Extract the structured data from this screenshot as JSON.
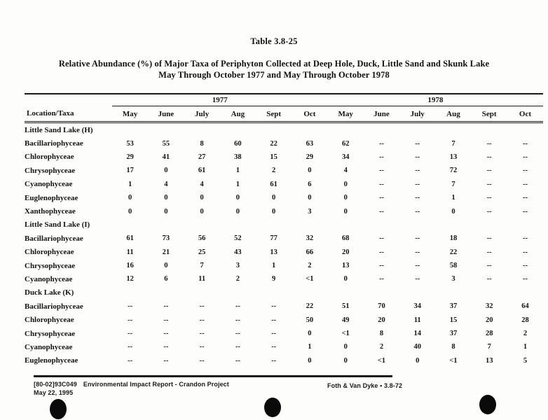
{
  "colors": {
    "ink": "#1a1a1a",
    "page": "#fdfdfb"
  },
  "header": {
    "table_label": "Table 3.8-25",
    "title_line1": "Relative Abundance (%) of Major Taxa of Periphyton Collected at Deep Hole, Duck, Little Sand and Skunk Lake",
    "title_line2": "May Through October 1977 and May Through October 1978"
  },
  "table": {
    "corner_header": "Location/Taxa",
    "year_groups": [
      {
        "label": "1977"
      },
      {
        "label": "1978"
      }
    ],
    "months": [
      "May",
      "June",
      "July",
      "Aug",
      "Sept",
      "Oct",
      "May",
      "June",
      "July",
      "Aug",
      "Sept",
      "Oct"
    ],
    "sections": [
      {
        "location": "Little Sand Lake (H)",
        "rows": [
          {
            "taxon": "Bacillariophyceae",
            "values": [
              "53",
              "55",
              "8",
              "60",
              "22",
              "63",
              "62",
              "--",
              "--",
              "7",
              "--",
              "--"
            ]
          },
          {
            "taxon": "Chlorophyceae",
            "values": [
              "29",
              "41",
              "27",
              "38",
              "15",
              "29",
              "34",
              "--",
              "--",
              "13",
              "--",
              "--"
            ]
          },
          {
            "taxon": "Chrysophyceae",
            "values": [
              "17",
              "0",
              "61",
              "1",
              "2",
              "0",
              "4",
              "--",
              "--",
              "72",
              "--",
              "--"
            ]
          },
          {
            "taxon": "Cyanophyceae",
            "values": [
              "1",
              "4",
              "4",
              "1",
              "61",
              "6",
              "0",
              "--",
              "--",
              "7",
              "--",
              "--"
            ]
          },
          {
            "taxon": "Euglenophyceae",
            "values": [
              "0",
              "0",
              "0",
              "0",
              "0",
              "0",
              "0",
              "--",
              "--",
              "1",
              "--",
              "--"
            ]
          },
          {
            "taxon": "Xanthophyceae",
            "values": [
              "0",
              "0",
              "0",
              "0",
              "0",
              "3",
              "0",
              "--",
              "--",
              "0",
              "--",
              "--"
            ]
          }
        ]
      },
      {
        "location": "Little Sand Lake (I)",
        "rows": [
          {
            "taxon": "Bacillariophyceae",
            "values": [
              "61",
              "73",
              "56",
              "52",
              "77",
              "32",
              "68",
              "--",
              "--",
              "18",
              "--",
              "--"
            ]
          },
          {
            "taxon": "Chlorophyceae",
            "values": [
              "11",
              "21",
              "25",
              "43",
              "13",
              "66",
              "20",
              "--",
              "--",
              "22",
              "--",
              "--"
            ]
          },
          {
            "taxon": "Chrysophyceae",
            "values": [
              "16",
              "0",
              "7",
              "3",
              "1",
              "2",
              "13",
              "--",
              "--",
              "58",
              "--",
              "--"
            ]
          },
          {
            "taxon": "Cyanophyceae",
            "values": [
              "12",
              "6",
              "11",
              "2",
              "9",
              "<1",
              "0",
              "--",
              "--",
              "3",
              "--",
              "--"
            ]
          }
        ]
      },
      {
        "location": "Duck Lake (K)",
        "rows": [
          {
            "taxon": "Bacillariophyceae",
            "values": [
              "--",
              "--",
              "--",
              "--",
              "--",
              "22",
              "51",
              "70",
              "34",
              "37",
              "32",
              "64"
            ]
          },
          {
            "taxon": "Chlorophyceae",
            "values": [
              "--",
              "--",
              "--",
              "--",
              "--",
              "50",
              "49",
              "20",
              "11",
              "15",
              "20",
              "28"
            ]
          },
          {
            "taxon": "Chrysophyceae",
            "values": [
              "--",
              "--",
              "--",
              "--",
              "--",
              "0",
              "<1",
              "8",
              "14",
              "37",
              "28",
              "2"
            ]
          },
          {
            "taxon": "Cyanophyceae",
            "values": [
              "--",
              "--",
              "--",
              "--",
              "--",
              "1",
              "0",
              "2",
              "40",
              "8",
              "7",
              "1"
            ]
          },
          {
            "taxon": "Euglenophyceae",
            "values": [
              "--",
              "--",
              "--",
              "--",
              "--",
              "0",
              "0",
              "<1",
              "0",
              "<1",
              "13",
              "5"
            ]
          }
        ]
      }
    ]
  },
  "footer": {
    "doc_id": "[80-02]93C049",
    "doc_title": "Environmental Impact Report - Crandon Project",
    "date": "May 22, 1995",
    "right_text": "Foth & Van Dyke • 3.8-72"
  }
}
